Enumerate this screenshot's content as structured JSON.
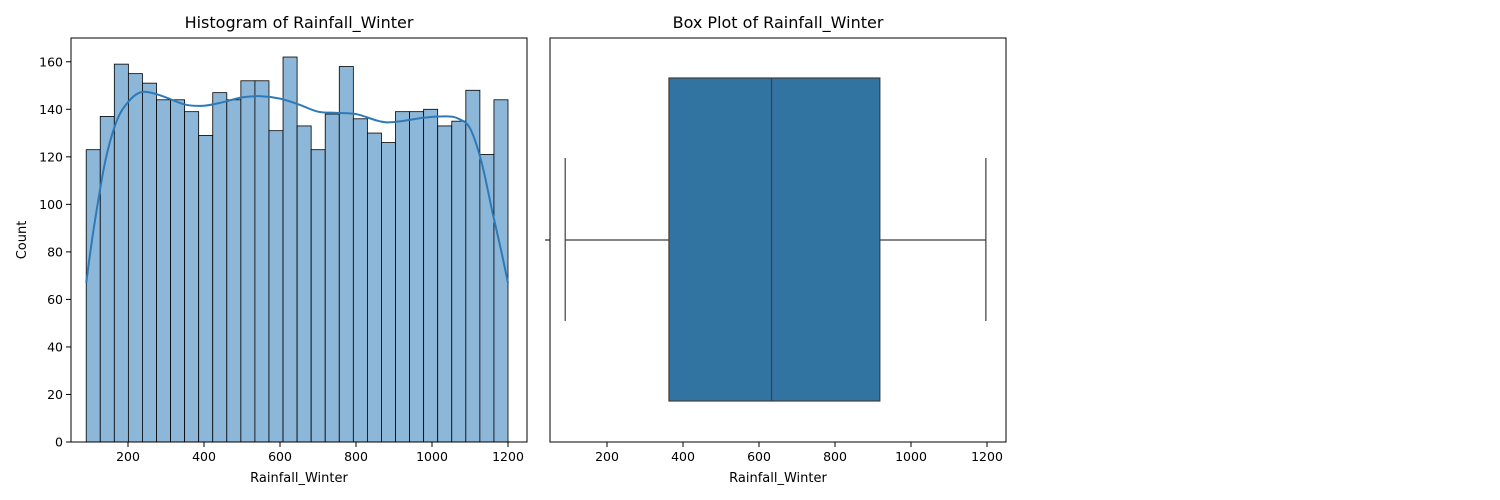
{
  "chart_data": [
    {
      "type": "bar",
      "subtype": "histogram-with-kde",
      "title": "Histogram of Rainfall_Winter",
      "xlabel": "Rainfall_Winter",
      "ylabel": "Count",
      "xlim": [
        50,
        1250
      ],
      "ylim": [
        0,
        170
      ],
      "x_ticks": [
        200,
        400,
        600,
        800,
        1000,
        1200
      ],
      "y_ticks": [
        0,
        20,
        40,
        60,
        80,
        100,
        120,
        140,
        160
      ],
      "bin_range": [
        90,
        1200
      ],
      "counts": [
        123,
        137,
        159,
        155,
        151,
        144,
        144,
        139,
        129,
        147,
        144,
        152,
        152,
        131,
        162,
        133,
        123,
        138,
        158,
        136,
        130,
        126,
        139,
        139,
        140,
        133,
        135,
        148,
        121,
        144
      ],
      "kde": {
        "x": [
          90,
          110,
          140,
          170,
          200,
          230,
          260,
          300,
          350,
          400,
          450,
          500,
          550,
          600,
          650,
          700,
          750,
          800,
          850,
          880,
          920,
          980,
          1040,
          1070,
          1100,
          1130,
          1160,
          1180,
          1200
        ],
        "y": [
          67,
          90,
          118,
          135,
          143,
          147,
          147,
          145,
          142,
          141.5,
          143,
          145,
          145.5,
          144.5,
          142,
          139,
          138.5,
          138,
          135.5,
          134.5,
          135,
          136.5,
          137,
          136,
          132,
          118,
          96,
          82,
          67
        ]
      },
      "grid": false,
      "colors": {
        "bar_fill": "#8db7d8",
        "bar_edge": "#000000",
        "kde_line": "#2e7ab8"
      }
    },
    {
      "type": "box",
      "title": "Box Plot of Rainfall_Winter",
      "xlabel": "Rainfall_Winter",
      "xlim": [
        50,
        1250
      ],
      "x_ticks": [
        200,
        400,
        600,
        800,
        1000,
        1200
      ],
      "whisker_low": 90,
      "q1": 363,
      "median": 633,
      "q3": 918,
      "whisker_high": 1197,
      "grid": false,
      "colors": {
        "box_fill": "#3274a1",
        "line": "#3f3f3f"
      }
    }
  ]
}
